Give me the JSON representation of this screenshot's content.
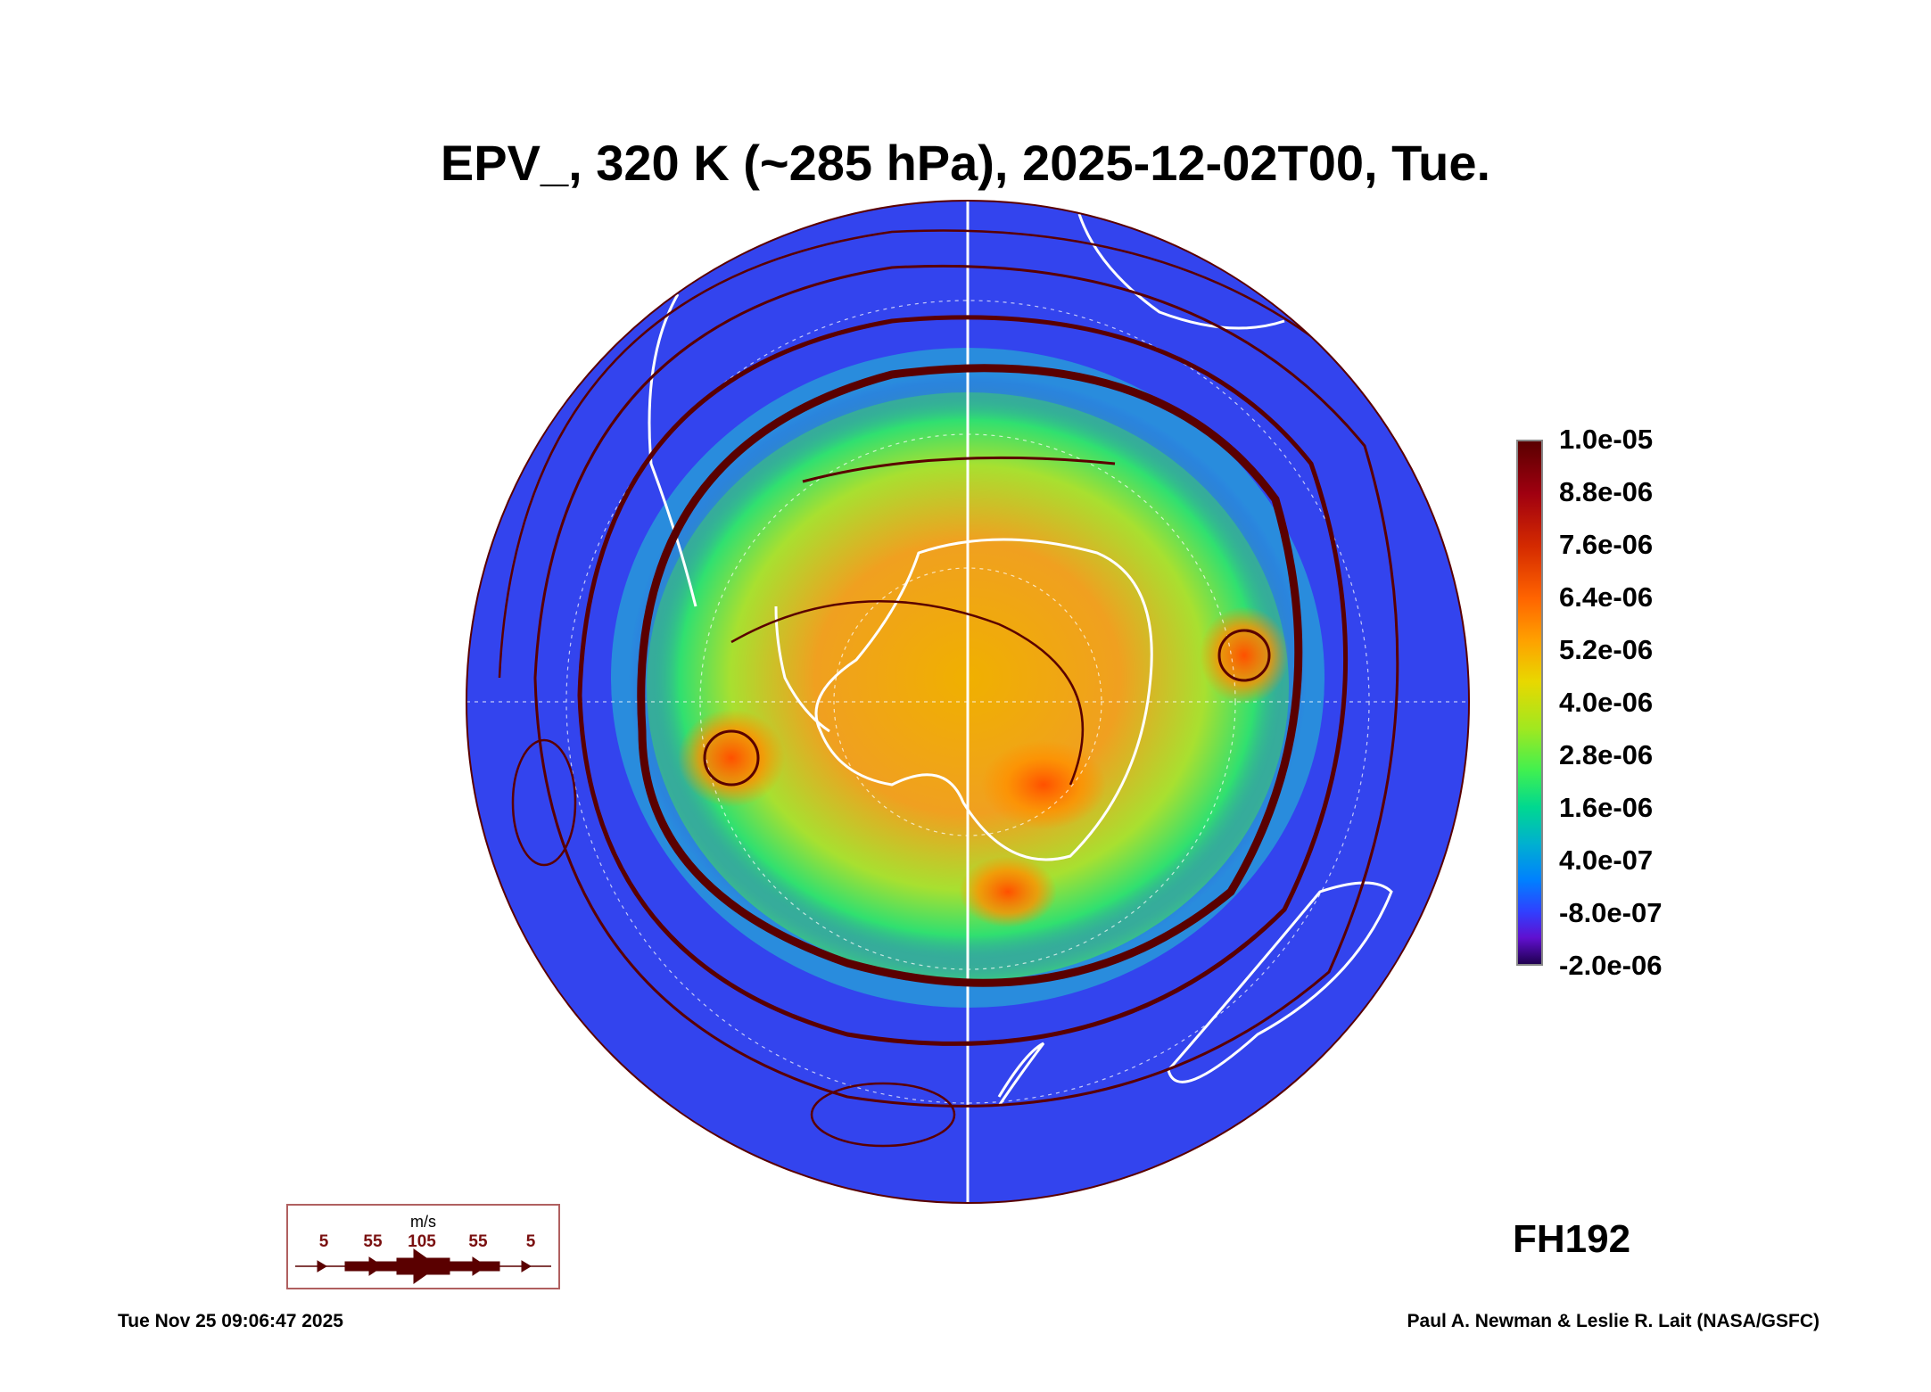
{
  "chart_data": {
    "type": "heatmap",
    "title": "EPV_, 320 K (~285 hPa), 2025-12-02T00, Tue.",
    "projection": "south polar stereographic",
    "variable": "EPV_",
    "colorbar": {
      "range": [
        -2e-06,
        1e-05
      ],
      "tick_labels": [
        "1.0e-05",
        "8.8e-06",
        "7.6e-06",
        "6.4e-06",
        "5.2e-06",
        "4.0e-06",
        "2.8e-06",
        "1.6e-06",
        "4.0e-07",
        "-8.0e-07",
        "-2.0e-06"
      ],
      "colors": [
        "#5a0000",
        "#a00010",
        "#d42a00",
        "#ff6400",
        "#ffa000",
        "#e8d800",
        "#a0e820",
        "#40f050",
        "#00d890",
        "#00b0d0",
        "#0080ff",
        "#3040ff",
        "#6010d0",
        "#200050"
      ]
    },
    "wind_legend": {
      "unit": "m/s",
      "speeds": [
        "5",
        "55",
        "105",
        "55",
        "5"
      ]
    },
    "forecast_hour": "FH192",
    "generated": "Tue Nov 25 09:06:47 2025",
    "credit": "Paul A. Newman & Leslie R. Lait (NASA/GSFC)",
    "colors": {
      "streamline": "#5a0000",
      "coast": "#ffffff",
      "background_field": "#3344ee"
    }
  }
}
